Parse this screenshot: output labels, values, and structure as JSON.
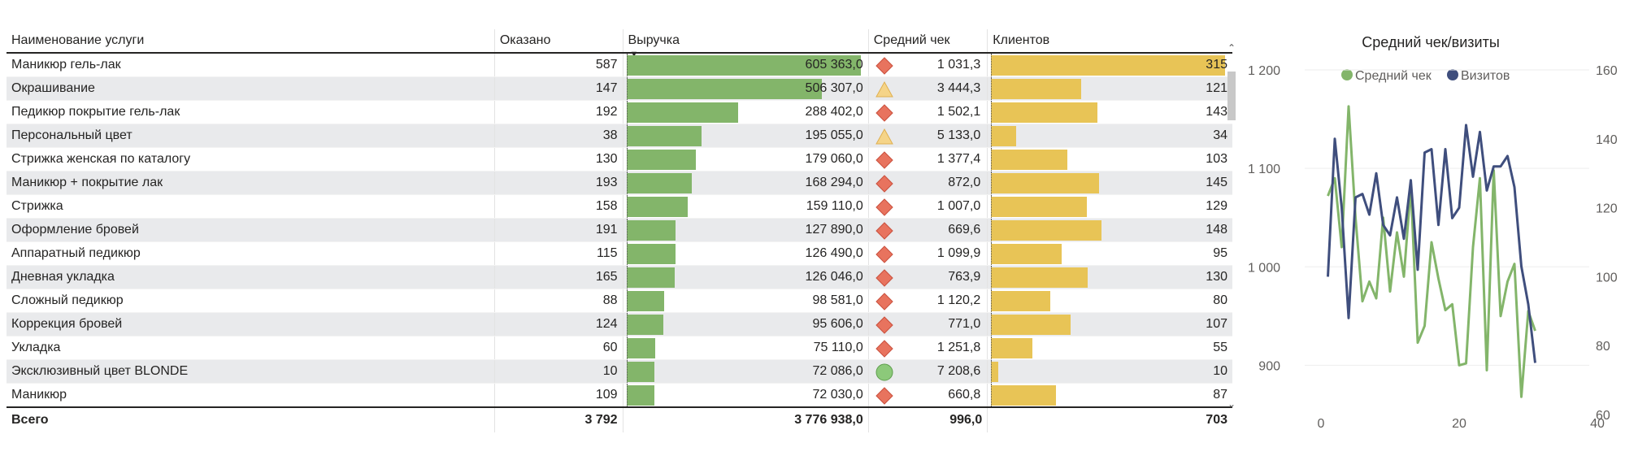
{
  "table": {
    "headers": {
      "name": "Наименование услуги",
      "count": "Оказано",
      "revenue": "Выручка",
      "avg_check": "Средний чек",
      "clients": "Клиентов"
    },
    "rows": [
      {
        "name": "Маникюр гель-лак",
        "count": "587",
        "revenue": "605 363,0",
        "revenue_value": 605363.0,
        "avg": "1 031,3",
        "kpi": "diamond-red",
        "clients": "315",
        "clients_value": 315
      },
      {
        "name": "Окрашивание",
        "count": "147",
        "revenue": "506 307,0",
        "revenue_value": 506307.0,
        "avg": "3 444,3",
        "kpi": "triangle-yellow",
        "clients": "121",
        "clients_value": 121
      },
      {
        "name": "Педикюр покрытие гель-лак",
        "count": "192",
        "revenue": "288 402,0",
        "revenue_value": 288402.0,
        "avg": "1 502,1",
        "kpi": "diamond-red",
        "clients": "143",
        "clients_value": 143
      },
      {
        "name": "Персональный цвет",
        "count": "38",
        "revenue": "195 055,0",
        "revenue_value": 195055.0,
        "avg": "5 133,0",
        "kpi": "triangle-yellow",
        "clients": "34",
        "clients_value": 34
      },
      {
        "name": "Стрижка женская по каталогу",
        "count": "130",
        "revenue": "179 060,0",
        "revenue_value": 179060.0,
        "avg": "1 377,4",
        "kpi": "diamond-red",
        "clients": "103",
        "clients_value": 103
      },
      {
        "name": "Маникюр + покрытие лак",
        "count": "193",
        "revenue": "168 294,0",
        "revenue_value": 168294.0,
        "avg": "872,0",
        "kpi": "diamond-red",
        "clients": "145",
        "clients_value": 145
      },
      {
        "name": "Стрижка",
        "count": "158",
        "revenue": "159 110,0",
        "revenue_value": 159110.0,
        "avg": "1 007,0",
        "kpi": "diamond-red",
        "clients": "129",
        "clients_value": 129
      },
      {
        "name": "Оформление бровей",
        "count": "191",
        "revenue": "127 890,0",
        "revenue_value": 127890.0,
        "avg": "669,6",
        "kpi": "diamond-red",
        "clients": "148",
        "clients_value": 148
      },
      {
        "name": "Аппаратный педикюр",
        "count": "115",
        "revenue": "126 490,0",
        "revenue_value": 126490.0,
        "avg": "1 099,9",
        "kpi": "diamond-red",
        "clients": "95",
        "clients_value": 95
      },
      {
        "name": "Дневная укладка",
        "count": "165",
        "revenue": "126 046,0",
        "revenue_value": 126046.0,
        "avg": "763,9",
        "kpi": "diamond-red",
        "clients": "130",
        "clients_value": 130
      },
      {
        "name": "Сложный педикюр",
        "count": "88",
        "revenue": "98 581,0",
        "revenue_value": 98581.0,
        "avg": "1 120,2",
        "kpi": "diamond-red",
        "clients": "80",
        "clients_value": 80
      },
      {
        "name": "Коррекция бровей",
        "count": "124",
        "revenue": "95 606,0",
        "revenue_value": 95606.0,
        "avg": "771,0",
        "kpi": "diamond-red",
        "clients": "107",
        "clients_value": 107
      },
      {
        "name": "Укладка",
        "count": "60",
        "revenue": "75 110,0",
        "revenue_value": 75110.0,
        "avg": "1 251,8",
        "kpi": "diamond-red",
        "clients": "55",
        "clients_value": 55
      },
      {
        "name": "Эксклюзивный цвет BLONDE",
        "count": "10",
        "revenue": "72 086,0",
        "revenue_value": 72086.0,
        "avg": "7 208,6",
        "kpi": "circle-green",
        "clients": "10",
        "clients_value": 10
      },
      {
        "name": "Маникюр",
        "count": "109",
        "revenue": "72 030,0",
        "revenue_value": 72030.0,
        "avg": "660,8",
        "kpi": "diamond-red",
        "clients": "87",
        "clients_value": 87
      }
    ],
    "total": {
      "label": "Всего",
      "count": "3 792",
      "revenue": "3 776 938,0",
      "avg": "996,0",
      "clients": "703"
    },
    "sorted_column": "revenue",
    "sort_direction": "descending",
    "colors": {
      "revenue_bar": "#83b56a",
      "clients_bar": "#e8c456",
      "kpi_red": "#e8735e",
      "kpi_yellow": "#f5d488",
      "kpi_green": "#8cc97a"
    }
  },
  "scrollbar": {
    "up_icon": "chevron-up-icon",
    "down_icon": "chevron-down-icon"
  },
  "chart_data": {
    "type": "line",
    "title": "Средний чек/визиты",
    "legend_position": "top",
    "series": [
      {
        "name": "Средний чек",
        "axis": "left",
        "color": "#83b56a",
        "x": [
          1,
          2,
          3,
          4,
          5,
          6,
          7,
          8,
          9,
          10,
          11,
          12,
          13,
          14,
          15,
          16,
          17,
          18,
          19,
          20,
          21,
          22,
          23,
          24,
          25,
          26,
          27,
          28,
          29,
          30,
          31
        ],
        "values": [
          1072,
          1090,
          1020,
          1163,
          1050,
          965,
          985,
          968,
          1050,
          975,
          1035,
          990,
          1082,
          923,
          940,
          1025,
          988,
          956,
          962,
          900,
          902,
          1020,
          1090,
          895,
          1098,
          950,
          985,
          1003,
          868,
          955,
          935
        ]
      },
      {
        "name": "Визитов",
        "axis": "right",
        "color": "#3f4e7d",
        "x": [
          1,
          2,
          3,
          4,
          5,
          6,
          7,
          8,
          9,
          10,
          11,
          12,
          13,
          14,
          15,
          16,
          17,
          18,
          19,
          20,
          21,
          22,
          23,
          24,
          25,
          26,
          27,
          28,
          29,
          30,
          31
        ],
        "values": [
          100,
          140,
          120,
          88,
          123,
          124,
          118,
          130,
          115,
          112,
          123,
          111,
          128,
          102,
          136,
          137,
          115,
          137,
          117,
          120,
          144,
          129,
          142,
          125,
          132,
          132,
          135,
          126,
          103,
          92,
          75
        ]
      }
    ],
    "x_ticks": [
      "0",
      "20",
      "40"
    ],
    "xlim": [
      0,
      40
    ],
    "y_left_ticks": [
      "900",
      "1 000",
      "1 100",
      "1 200"
    ],
    "y_left_lim": [
      850,
      1200
    ],
    "y_right_ticks": [
      "60",
      "80",
      "100",
      "120",
      "140",
      "160"
    ],
    "y_right_lim": [
      60,
      160
    ],
    "grid": true
  }
}
